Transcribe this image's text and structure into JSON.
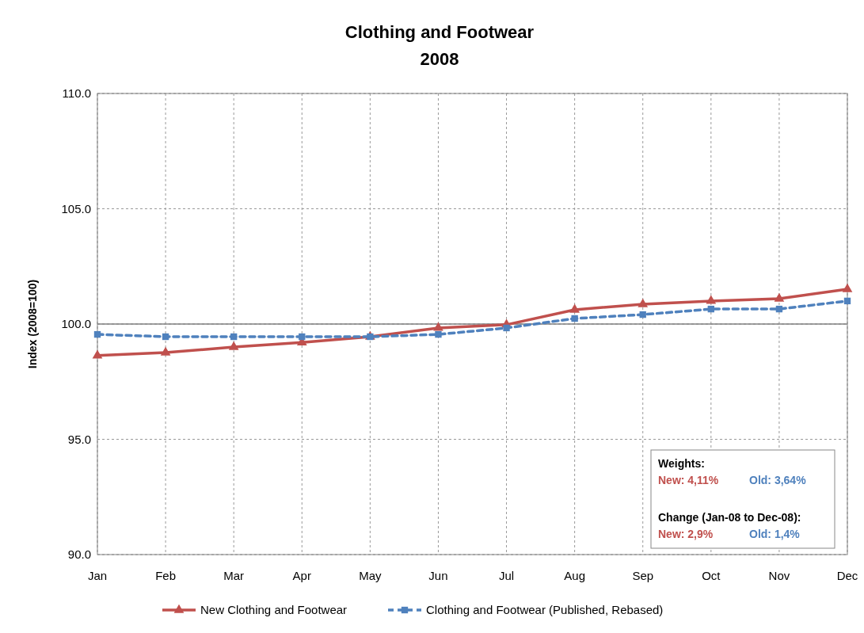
{
  "chart_data": {
    "type": "line",
    "title": "Clothing and Footwear",
    "subtitle": "2008",
    "ylabel": "Index (2008=100)",
    "categories": [
      "Jan",
      "Feb",
      "Mar",
      "Apr",
      "May",
      "Jun",
      "Jul",
      "Aug",
      "Sep",
      "Oct",
      "Nov",
      "Dec"
    ],
    "series": [
      {
        "name": "New Clothing and Footwear",
        "color": "#c0504d",
        "marker": "triangle",
        "line_style": "solid",
        "values": [
          98.63,
          98.76,
          99.0,
          99.2,
          99.45,
          99.83,
          99.97,
          100.62,
          100.86,
          101.0,
          101.1,
          101.51
        ]
      },
      {
        "name": "Clothing and Footwear (Published, Rebased)",
        "color": "#4f81bd",
        "marker": "square",
        "line_style": "dashed",
        "values": [
          99.55,
          99.45,
          99.45,
          99.45,
          99.45,
          99.55,
          99.83,
          100.24,
          100.41,
          100.65,
          100.65,
          101.0
        ]
      }
    ],
    "ylim": [
      90,
      110
    ],
    "yticks": [
      {
        "value": 90,
        "label": "90.0"
      },
      {
        "value": 95,
        "label": "95.0"
      },
      {
        "value": 100,
        "label": "100.0"
      },
      {
        "value": 105,
        "label": "105.0"
      },
      {
        "value": 110,
        "label": "110.0"
      }
    ],
    "grid": true,
    "legend": "bottom",
    "ref_lines": [
      {
        "axis": "y",
        "value": 100,
        "color": "#808080",
        "line_style": "solid"
      }
    ],
    "annotations": [
      "Weights:",
      "New: 4,11%",
      "Old: 3,64%",
      "Change (Jan-08 to Dec-08):",
      "New: 2,9%",
      "Old: 1,4%"
    ]
  }
}
